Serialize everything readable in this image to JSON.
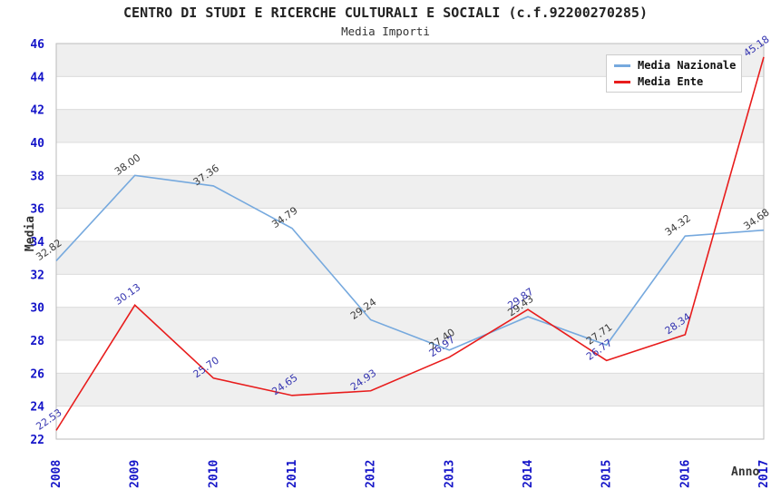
{
  "header": {
    "title": "CENTRO DI STUDI E RICERCHE CULTURALI E SOCIALI (c.f.92200270285)",
    "subtitle": "Media Importi"
  },
  "chart_data": {
    "type": "line",
    "title": "CENTRO DI STUDI E RICERCHE CULTURALI E SOCIALI (c.f.92200270285)",
    "subtitle": "Media Importi",
    "xlabel": "Anno",
    "ylabel": "Media",
    "x": [
      2008,
      2009,
      2010,
      2011,
      2012,
      2013,
      2014,
      2015,
      2016,
      2017
    ],
    "series": [
      {
        "name": "Media Nazionale",
        "color": "#76a9de",
        "label_color": "#3a3a3a",
        "values": [
          32.82,
          38.0,
          37.36,
          34.79,
          29.24,
          27.4,
          29.43,
          27.71,
          34.32,
          34.68
        ]
      },
      {
        "name": "Media Ente",
        "color": "#e81c1c",
        "label_color": "#3434b0",
        "values": [
          22.53,
          30.13,
          25.7,
          24.65,
          24.93,
          26.97,
          29.87,
          26.77,
          28.34,
          45.18
        ]
      }
    ],
    "ylim": [
      22,
      46
    ],
    "ytick_step": 2,
    "y_ticks": [
      22,
      24,
      26,
      28,
      30,
      32,
      34,
      36,
      38,
      40,
      42,
      44,
      46
    ],
    "grid": true,
    "legend_position": "top-right"
  },
  "colors": {
    "axis_tick_text": "#1414c8",
    "band_gray": "#efefef",
    "band_white": "#ffffff",
    "grid_line": "#dcdcdc",
    "plot_border": "#bbbbbb"
  }
}
